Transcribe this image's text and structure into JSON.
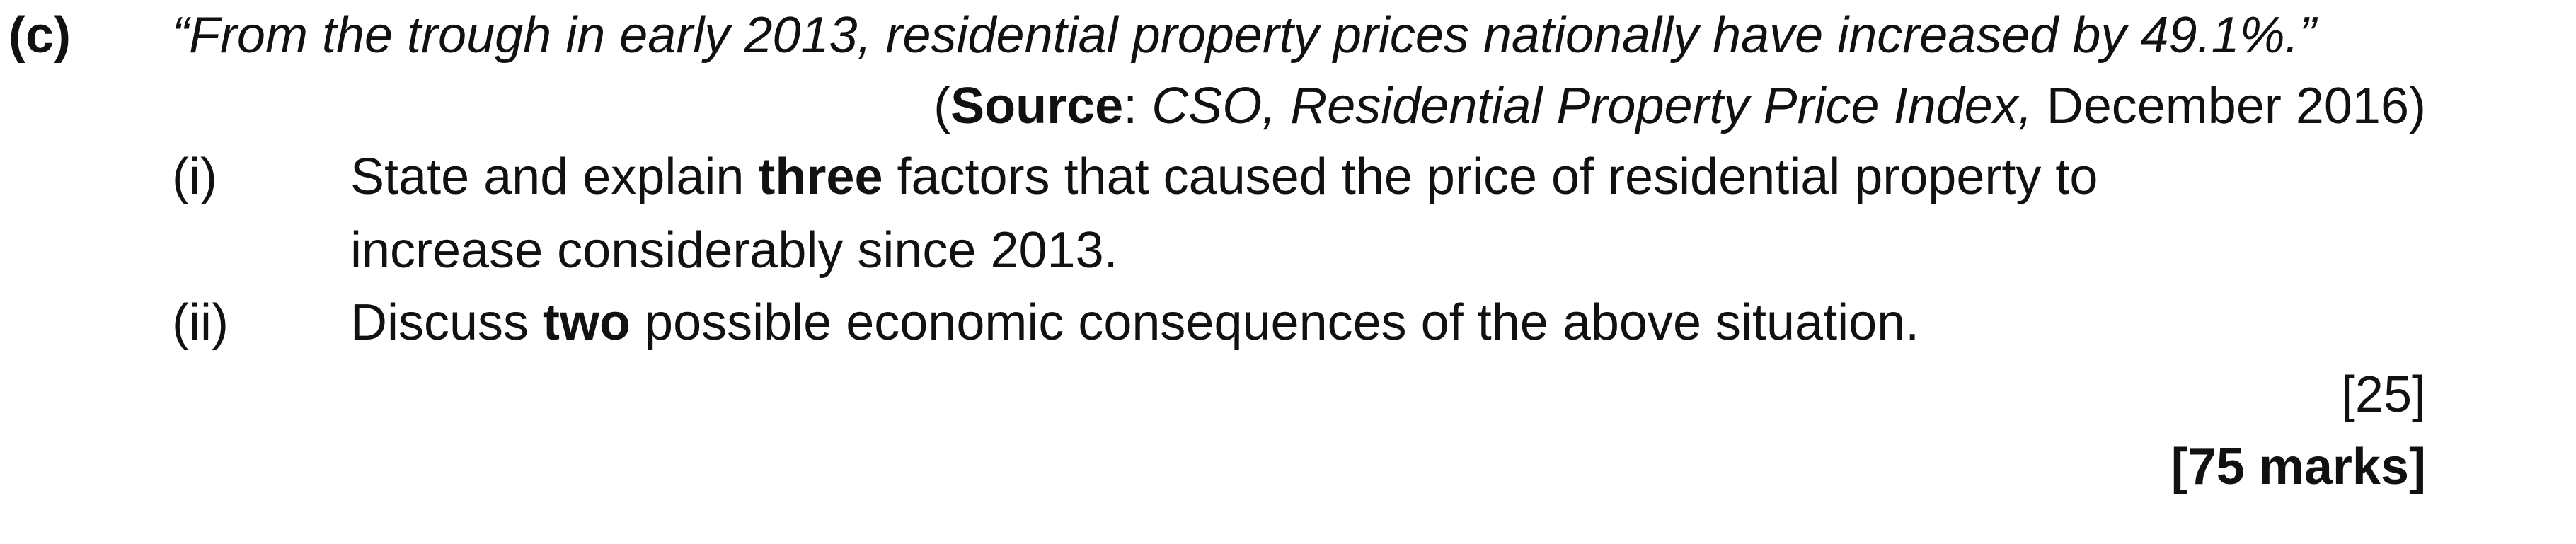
{
  "question": {
    "part_label": "(c)",
    "quote": "“From the trough in early 2013, residential property prices nationally have increased by 49.1%.”",
    "source": {
      "open": "(",
      "label": "Source",
      "colon": ": ",
      "publication": "CSO, Residential Property Price Index,",
      "date": " December 2016)"
    },
    "items": [
      {
        "number": "(i)",
        "text_before": "State and explain ",
        "emphasis": "three",
        "text_after": " factors that caused the price of residential property to",
        "continuation": "increase considerably since 2013."
      },
      {
        "number": "(ii)",
        "text_before": "Discuss ",
        "emphasis": "two",
        "text_after": " possible economic consequences of the above situation."
      }
    ],
    "marks": "[25]",
    "total_marks": "[75 marks]"
  }
}
